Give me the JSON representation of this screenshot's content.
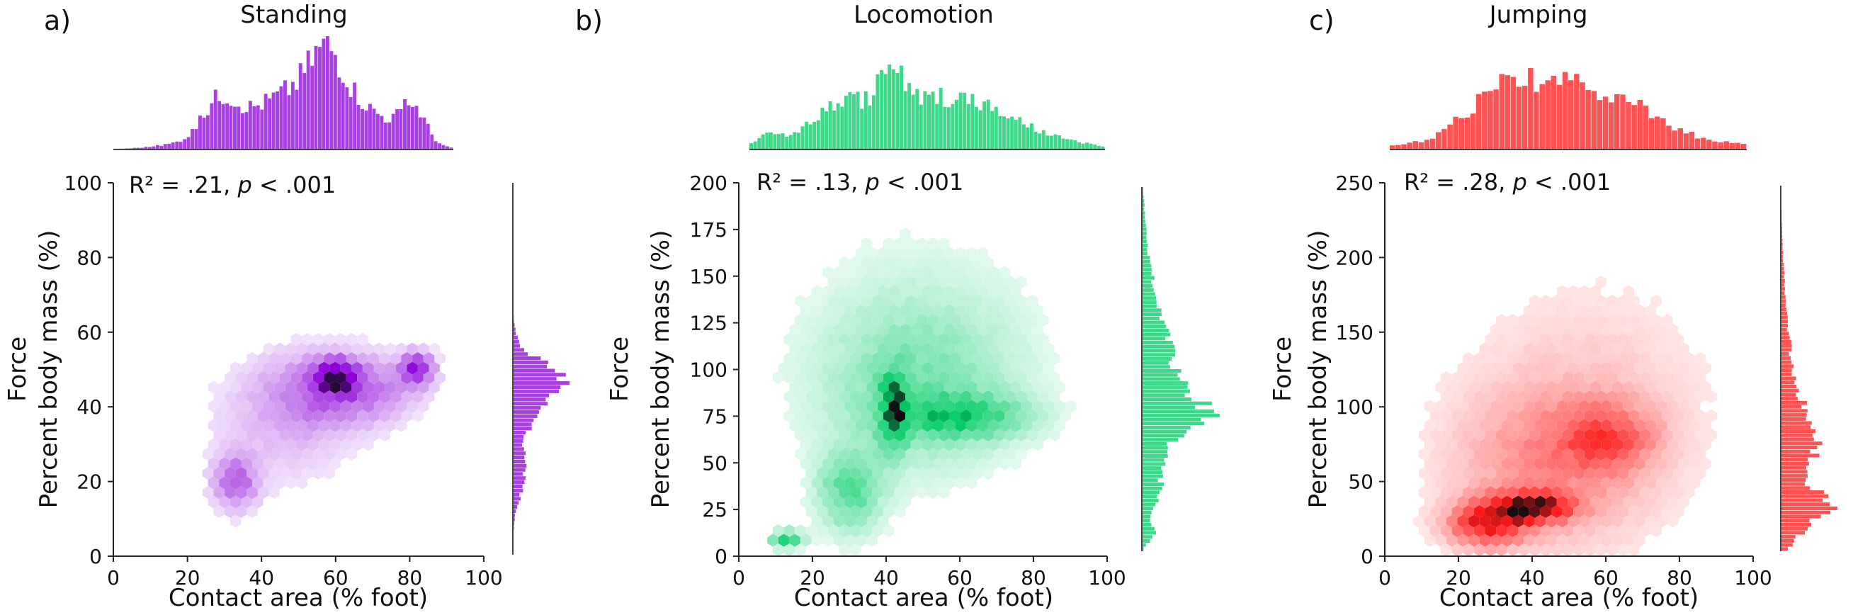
{
  "chart_data": [
    {
      "type": "hexbin",
      "panel_label": "a)",
      "title": "Standing",
      "color": "#8b00d8",
      "stat_prefix": "R² = .21, ",
      "stat_p": "p",
      "stat_suffix": " < .001",
      "xlabel": "Contact area (% foot)",
      "ylabel": "Force",
      "ylabel2": "Percent body mass (%)",
      "xlim": [
        0,
        100
      ],
      "ylim": [
        0,
        100
      ],
      "xticks": [
        "0",
        "20",
        "40",
        "60",
        "80",
        "100"
      ],
      "yticks": [
        "0",
        "20",
        "40",
        "60",
        "80",
        "100"
      ],
      "density_peaks": [
        {
          "x": 60,
          "y": 48,
          "sx": 4,
          "sy": 3,
          "w": 1.0
        },
        {
          "x": 82,
          "y": 50,
          "sx": 3,
          "sy": 3,
          "w": 0.75
        },
        {
          "x": 55,
          "y": 44,
          "sx": 10,
          "sy": 7,
          "w": 0.35
        },
        {
          "x": 33,
          "y": 20,
          "sx": 4,
          "sy": 5,
          "w": 0.45
        },
        {
          "x": 70,
          "y": 45,
          "sx": 9,
          "sy": 6,
          "w": 0.3
        },
        {
          "x": 45,
          "y": 35,
          "sx": 14,
          "sy": 12,
          "w": 0.15
        }
      ],
      "support": {
        "xmin": 6,
        "xmax": 92,
        "ymin": 4,
        "ymax": 84
      },
      "x_marginal_shape": "bimodal peaks near 60 and 82",
      "y_marginal_shape": "peak near 48"
    },
    {
      "type": "hexbin",
      "panel_label": "b)",
      "title": "Locomotion",
      "color": "#00cc66",
      "stat_prefix": "R² = .13, ",
      "stat_p": "p",
      "stat_suffix": " < .001",
      "xlabel": "Contact area (% foot)",
      "ylabel": "Force",
      "ylabel2": "Percent body mass (%)",
      "xlim": [
        0,
        100
      ],
      "ylim": [
        0,
        200
      ],
      "xticks": [
        "0",
        "20",
        "40",
        "60",
        "80",
        "100"
      ],
      "yticks": [
        "0",
        "25",
        "50",
        "75",
        "100",
        "125",
        "150",
        "175",
        "200"
      ],
      "density_peaks": [
        {
          "x": 42,
          "y": 78,
          "sx": 2.5,
          "sy": 14,
          "w": 1.0
        },
        {
          "x": 13,
          "y": 9,
          "sx": 3,
          "sy": 3,
          "w": 0.9
        },
        {
          "x": 60,
          "y": 75,
          "sx": 12,
          "sy": 8,
          "w": 0.7
        },
        {
          "x": 30,
          "y": 35,
          "sx": 6,
          "sy": 15,
          "w": 0.55
        },
        {
          "x": 48,
          "y": 90,
          "sx": 18,
          "sy": 30,
          "w": 0.35
        },
        {
          "x": 50,
          "y": 120,
          "sx": 22,
          "sy": 40,
          "w": 0.12
        }
      ],
      "support": {
        "xmin": 8,
        "xmax": 93,
        "ymin": 0,
        "ymax": 190
      },
      "x_marginal_shape": "peak near 42",
      "y_marginal_shape": "peak near 75"
    },
    {
      "type": "hexbin",
      "panel_label": "c)",
      "title": "Jumping",
      "color": "#ff1a1a",
      "stat_prefix": "R² = .28, ",
      "stat_p": "p",
      "stat_suffix": " < .001",
      "xlabel": "Contact area (% foot)",
      "ylabel": "Force",
      "ylabel2": "Percent body mass (%)",
      "xlim": [
        0,
        100
      ],
      "ylim": [
        0,
        250
      ],
      "xticks": [
        "0",
        "20",
        "40",
        "60",
        "80",
        "100"
      ],
      "yticks": [
        "0",
        "50",
        "100",
        "150",
        "200",
        "250"
      ],
      "density_peaks": [
        {
          "x": 40,
          "y": 33,
          "sx": 7,
          "sy": 7,
          "w": 1.0
        },
        {
          "x": 28,
          "y": 22,
          "sx": 7,
          "sy": 10,
          "w": 0.8
        },
        {
          "x": 60,
          "y": 80,
          "sx": 9,
          "sy": 15,
          "w": 0.45
        },
        {
          "x": 45,
          "y": 60,
          "sx": 18,
          "sy": 35,
          "w": 0.3
        },
        {
          "x": 55,
          "y": 110,
          "sx": 24,
          "sy": 55,
          "w": 0.12
        }
      ],
      "support": {
        "xmin": 2,
        "xmax": 96,
        "ymin": 0,
        "ymax": 240
      },
      "x_marginal_shape": "peak near 40",
      "y_marginal_shape": "peak near 30"
    }
  ]
}
